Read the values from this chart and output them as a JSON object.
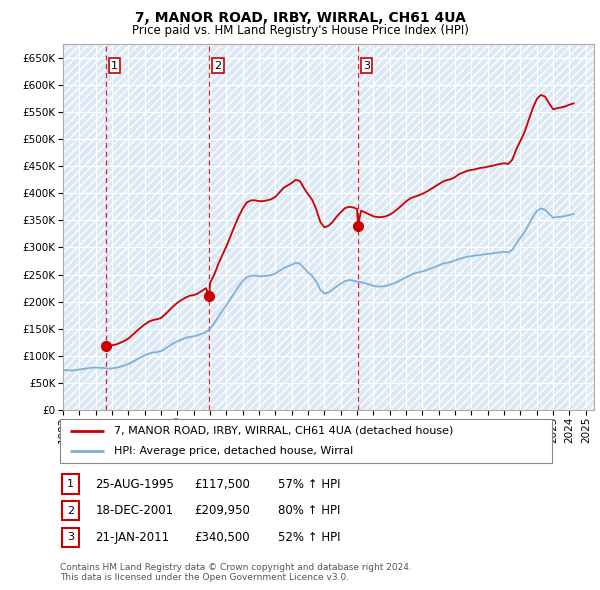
{
  "title": "7, MANOR ROAD, IRBY, WIRRAL, CH61 4UA",
  "subtitle": "Price paid vs. HM Land Registry's House Price Index (HPI)",
  "ylim": [
    0,
    675000
  ],
  "yticks": [
    0,
    50000,
    100000,
    150000,
    200000,
    250000,
    300000,
    350000,
    400000,
    450000,
    500000,
    550000,
    600000,
    650000
  ],
  "sale_color": "#cc0000",
  "hpi_color": "#7fb0d8",
  "vline_color": "#cc0000",
  "sales": [
    {
      "date_num": 1995.64,
      "price": 117500,
      "label": "1"
    },
    {
      "date_num": 2001.96,
      "price": 209950,
      "label": "2"
    },
    {
      "date_num": 2011.05,
      "price": 340500,
      "label": "3"
    }
  ],
  "sale_labels": [
    {
      "label": "1",
      "date": "25-AUG-1995",
      "price": "£117,500",
      "change": "57% ↑ HPI"
    },
    {
      "label": "2",
      "date": "18-DEC-2001",
      "price": "£209,950",
      "change": "80% ↑ HPI"
    },
    {
      "label": "3",
      "date": "21-JAN-2011",
      "price": "£340,500",
      "change": "52% ↑ HPI"
    }
  ],
  "legend_line1": "7, MANOR ROAD, IRBY, WIRRAL, CH61 4UA (detached house)",
  "legend_line2": "HPI: Average price, detached house, Wirral",
  "footer": "Contains HM Land Registry data © Crown copyright and database right 2024.\nThis data is licensed under the Open Government Licence v3.0.",
  "hpi_data_years": [
    1993.0,
    1993.25,
    1993.5,
    1993.75,
    1994.0,
    1994.25,
    1994.5,
    1994.75,
    1995.0,
    1995.25,
    1995.5,
    1995.75,
    1996.0,
    1996.25,
    1996.5,
    1996.75,
    1997.0,
    1997.25,
    1997.5,
    1997.75,
    1998.0,
    1998.25,
    1998.5,
    1998.75,
    1999.0,
    1999.25,
    1999.5,
    1999.75,
    2000.0,
    2000.25,
    2000.5,
    2000.75,
    2001.0,
    2001.25,
    2001.5,
    2001.75,
    2002.0,
    2002.25,
    2002.5,
    2002.75,
    2003.0,
    2003.25,
    2003.5,
    2003.75,
    2004.0,
    2004.25,
    2004.5,
    2004.75,
    2005.0,
    2005.25,
    2005.5,
    2005.75,
    2006.0,
    2006.25,
    2006.5,
    2006.75,
    2007.0,
    2007.25,
    2007.5,
    2007.75,
    2008.0,
    2008.25,
    2008.5,
    2008.75,
    2009.0,
    2009.25,
    2009.5,
    2009.75,
    2010.0,
    2010.25,
    2010.5,
    2010.75,
    2011.0,
    2011.25,
    2011.5,
    2011.75,
    2012.0,
    2012.25,
    2012.5,
    2012.75,
    2013.0,
    2013.25,
    2013.5,
    2013.75,
    2014.0,
    2014.25,
    2014.5,
    2014.75,
    2015.0,
    2015.25,
    2015.5,
    2015.75,
    2016.0,
    2016.25,
    2016.5,
    2016.75,
    2017.0,
    2017.25,
    2017.5,
    2017.75,
    2018.0,
    2018.25,
    2018.5,
    2018.75,
    2019.0,
    2019.25,
    2019.5,
    2019.75,
    2020.0,
    2020.25,
    2020.5,
    2020.75,
    2021.0,
    2021.25,
    2021.5,
    2021.75,
    2022.0,
    2022.25,
    2022.5,
    2022.75,
    2023.0,
    2023.25,
    2023.5,
    2023.75,
    2024.0,
    2024.25
  ],
  "hpi_data_values": [
    74000,
    73500,
    73000,
    73500,
    75000,
    76000,
    77000,
    78000,
    78500,
    78000,
    77500,
    76500,
    77000,
    78000,
    80000,
    82000,
    85000,
    89000,
    93000,
    97000,
    101000,
    104000,
    106000,
    107000,
    109000,
    113000,
    118000,
    123000,
    127000,
    130000,
    133000,
    135000,
    136000,
    138000,
    141000,
    144000,
    150000,
    160000,
    172000,
    183000,
    193000,
    205000,
    217000,
    228000,
    238000,
    245000,
    248000,
    248000,
    247000,
    247000,
    248000,
    249000,
    252000,
    257000,
    262000,
    265000,
    268000,
    272000,
    270000,
    262000,
    254000,
    248000,
    237000,
    222000,
    215000,
    217000,
    222000,
    228000,
    233000,
    238000,
    240000,
    239000,
    237000,
    236000,
    234000,
    232000,
    229000,
    228000,
    228000,
    229000,
    231000,
    234000,
    237000,
    241000,
    245000,
    249000,
    252000,
    254000,
    256000,
    258000,
    261000,
    264000,
    267000,
    270000,
    272000,
    273000,
    276000,
    279000,
    281000,
    283000,
    284000,
    285000,
    286000,
    287000,
    288000,
    289000,
    290000,
    291000,
    292000,
    291000,
    296000,
    308000,
    318000,
    328000,
    342000,
    356000,
    367000,
    372000,
    370000,
    362000,
    355000,
    356000,
    357000,
    358000,
    360000,
    362000
  ],
  "prop_data_years": [
    1995.64,
    1995.75,
    1996.0,
    1996.25,
    1996.5,
    1996.75,
    1997.0,
    1997.25,
    1997.5,
    1997.75,
    1998.0,
    1998.25,
    1998.5,
    1998.75,
    1999.0,
    1999.25,
    1999.5,
    1999.75,
    2000.0,
    2000.25,
    2000.5,
    2000.75,
    2001.0,
    2001.25,
    2001.5,
    2001.75,
    2001.96,
    2002.0,
    2002.25,
    2002.5,
    2002.75,
    2003.0,
    2003.25,
    2003.5,
    2003.75,
    2004.0,
    2004.25,
    2004.5,
    2004.75,
    2005.0,
    2005.25,
    2005.5,
    2005.75,
    2006.0,
    2006.25,
    2006.5,
    2006.75,
    2007.0,
    2007.25,
    2007.5,
    2007.75,
    2008.0,
    2008.25,
    2008.5,
    2008.75,
    2009.0,
    2009.25,
    2009.5,
    2009.75,
    2010.0,
    2010.25,
    2010.5,
    2010.75,
    2011.0,
    2011.05,
    2011.25,
    2011.5,
    2011.75,
    2012.0,
    2012.25,
    2012.5,
    2012.75,
    2013.0,
    2013.25,
    2013.5,
    2013.75,
    2014.0,
    2014.25,
    2014.5,
    2014.75,
    2015.0,
    2015.25,
    2015.5,
    2015.75,
    2016.0,
    2016.25,
    2016.5,
    2016.75,
    2017.0,
    2017.25,
    2017.5,
    2017.75,
    2018.0,
    2018.25,
    2018.5,
    2018.75,
    2019.0,
    2019.25,
    2019.5,
    2019.75,
    2020.0,
    2020.25,
    2020.5,
    2020.75,
    2021.0,
    2021.25,
    2021.5,
    2021.75,
    2022.0,
    2022.25,
    2022.5,
    2022.75,
    2023.0,
    2023.25,
    2023.5,
    2023.75,
    2024.0,
    2024.25
  ],
  "prop_data_values": [
    117500,
    118500,
    119500,
    121000,
    124000,
    127500,
    132000,
    138500,
    145500,
    152000,
    158000,
    163000,
    166000,
    167500,
    170000,
    176500,
    184000,
    191500,
    198000,
    203000,
    207500,
    211000,
    212000,
    215000,
    220000,
    225000,
    209950,
    234500,
    249500,
    269000,
    286000,
    302000,
    320500,
    339500,
    357000,
    372000,
    383000,
    387000,
    387000,
    385500,
    385500,
    387000,
    389000,
    393500,
    401500,
    410000,
    414500,
    419000,
    425000,
    422500,
    409500,
    398000,
    388000,
    370500,
    347000,
    337000,
    340000,
    347000,
    357000,
    365000,
    372500,
    375000,
    374000,
    371000,
    340500,
    368000,
    364500,
    361000,
    357500,
    356000,
    356000,
    357500,
    360500,
    365500,
    371500,
    378000,
    385000,
    390500,
    393500,
    396000,
    399000,
    403000,
    407500,
    412000,
    417000,
    421500,
    424500,
    426000,
    430000,
    435500,
    438500,
    441500,
    443000,
    444500,
    446500,
    447500,
    449000,
    450500,
    452500,
    454000,
    455500,
    454000,
    462000,
    481500,
    497000,
    513000,
    535000,
    556500,
    574000,
    581500,
    578500,
    566000,
    555000,
    557000,
    558500,
    560500,
    563500,
    566000
  ],
  "xlim": [
    1993.0,
    2025.5
  ],
  "xticks": [
    1993,
    1994,
    1995,
    1996,
    1997,
    1998,
    1999,
    2000,
    2001,
    2002,
    2003,
    2004,
    2005,
    2006,
    2007,
    2008,
    2009,
    2010,
    2011,
    2012,
    2013,
    2014,
    2015,
    2016,
    2017,
    2018,
    2019,
    2020,
    2021,
    2022,
    2023,
    2024,
    2025
  ]
}
